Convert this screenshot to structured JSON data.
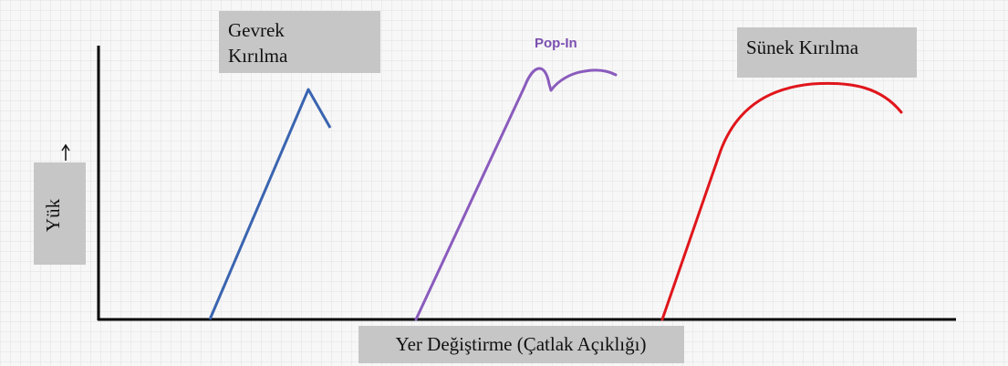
{
  "labels": {
    "brittle": [
      "Gevrek",
      "Kırılma"
    ],
    "pop_in": "Pop-In",
    "ductile": "Sünek Kırılma",
    "y_axis": "Yük",
    "x_axis": "Yer Değiştirme (Çatlak Açıklığı)"
  }
}
